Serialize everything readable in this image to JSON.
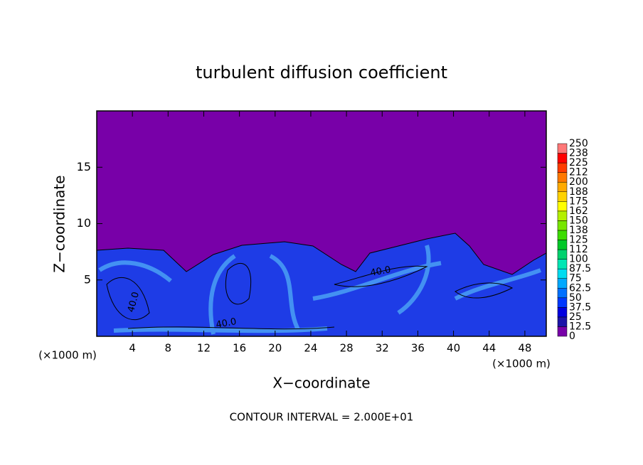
{
  "chart_data": {
    "type": "contour",
    "title": "turbulent diffusion coefficient",
    "x_label": "X−coordinate",
    "y_label": "Z−coordinate",
    "x_unit_label": "(×1000 m)",
    "footnote": "CONTOUR INTERVAL = 2.000E+01",
    "contour_labels": [
      "40.0",
      "40.0",
      "40.0"
    ],
    "xlim": [
      0,
      50.4
    ],
    "xticks": [
      4,
      8,
      12,
      16,
      20,
      24,
      28,
      32,
      36,
      40,
      44,
      48
    ],
    "ylim": [
      0,
      20
    ],
    "yticks": [
      5,
      10,
      15
    ],
    "colorbar": {
      "clim": [
        0,
        250
      ],
      "ticks": [
        0,
        12.5,
        25,
        37.5,
        50,
        62.5,
        75,
        87.5,
        100,
        {
          "value": 112.5,
          "label": "112"
        },
        125,
        {
          "value": 137.5,
          "label": "138"
        },
        150,
        {
          "value": 162.5,
          "label": "162"
        },
        175,
        {
          "value": 187.5,
          "label": "188"
        },
        200,
        {
          "value": 212.5,
          "label": "212"
        },
        225,
        {
          "value": 237.5,
          "label": "238"
        },
        250
      ],
      "colors": [
        "#7800a8",
        "#1c14a8",
        "#0000e0",
        "#0038ff",
        "#0070ff",
        "#00a8ff",
        "#00dcf0",
        "#00e6b4",
        "#00d26e",
        "#00c828",
        "#3cdc00",
        "#78e600",
        "#b4f000",
        "#ffff00",
        "#ffd200",
        "#ffaa00",
        "#ff7800",
        "#ff3c00",
        "#ff0000",
        "#ff7878"
      ]
    }
  }
}
